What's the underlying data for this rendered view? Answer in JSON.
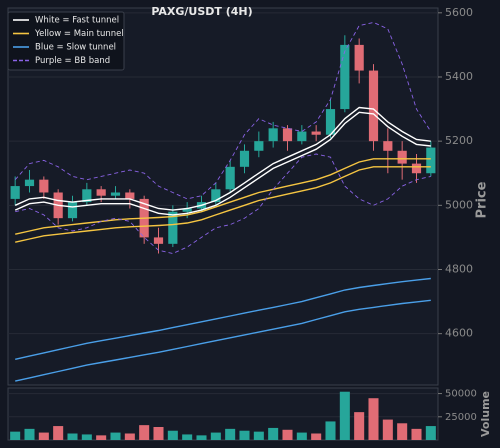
{
  "chart_data": [
    {
      "type": "candlestick",
      "title": "PAXG/USDT (4H)",
      "ylabel": "Price",
      "up_color": "#26a69a",
      "down_color": "#e06c75",
      "ylim": [
        4440,
        5615
      ],
      "yticks": [
        4600,
        4800,
        5000,
        5200,
        5400,
        5600
      ],
      "grid": true,
      "legend": "upper left",
      "open": [
        5020,
        5060,
        5080,
        5040,
        4960,
        5010,
        5050,
        5030,
        5040,
        5020,
        4900,
        4880,
        4980,
        4990,
        5010,
        5050,
        5120,
        5170,
        5200,
        5240,
        5200,
        5230,
        5220,
        5300,
        5500,
        5420,
        5200,
        5170,
        5130,
        5100
      ],
      "high": [
        5090,
        5110,
        5090,
        5050,
        5030,
        5070,
        5060,
        5060,
        5050,
        5030,
        4930,
        5000,
        5010,
        5030,
        5070,
        5140,
        5190,
        5230,
        5260,
        5250,
        5250,
        5250,
        5330,
        5530,
        5520,
        5440,
        5240,
        5200,
        5160,
        5200
      ],
      "low": [
        5000,
        5040,
        5020,
        4940,
        4950,
        5000,
        5010,
        5020,
        4990,
        4880,
        4850,
        4870,
        4960,
        4980,
        5000,
        5040,
        5100,
        5150,
        5180,
        5170,
        5190,
        5200,
        5210,
        5290,
        5380,
        5170,
        5100,
        5080,
        5070,
        5090
      ],
      "close": [
        5060,
        5080,
        5040,
        4960,
        5010,
        5050,
        5030,
        5040,
        5020,
        4900,
        4880,
        4980,
        4990,
        5010,
        5050,
        5120,
        5170,
        5200,
        5240,
        5200,
        5230,
        5220,
        5300,
        5500,
        5420,
        5200,
        5170,
        5130,
        5100,
        5180
      ],
      "indicators": [
        {
          "name": "White = Fast tunnel",
          "color": "#ffffff",
          "dash": false,
          "lines": [
            [
              5000,
              5020,
              5025,
              5015,
              5010,
              5015,
              5020,
              5020,
              5020,
              5005,
              4990,
              4985,
              4990,
              5000,
              5015,
              5040,
              5070,
              5100,
              5130,
              5150,
              5170,
              5190,
              5220,
              5270,
              5305,
              5300,
              5260,
              5230,
              5205,
              5200
            ],
            [
              4985,
              5005,
              5010,
              5000,
              4995,
              5000,
              5005,
              5005,
              5005,
              4990,
              4975,
              4970,
              4975,
              4985,
              5000,
              5025,
              5055,
              5085,
              5115,
              5135,
              5155,
              5175,
              5205,
              5255,
              5290,
              5285,
              5245,
              5215,
              5190,
              5185
            ]
          ]
        },
        {
          "name": "Yellow = Main tunnel",
          "color": "#f5c542",
          "dash": false,
          "lines": [
            [
              4910,
              4920,
              4930,
              4935,
              4940,
              4945,
              4950,
              4955,
              4958,
              4960,
              4962,
              4965,
              4970,
              4980,
              4995,
              5010,
              5025,
              5040,
              5050,
              5060,
              5070,
              5080,
              5095,
              5115,
              5135,
              5145,
              5145,
              5145,
              5145,
              5145
            ],
            [
              4885,
              4895,
              4905,
              4910,
              4915,
              4920,
              4925,
              4930,
              4933,
              4935,
              4937,
              4940,
              4945,
              4955,
              4970,
              4985,
              5000,
              5015,
              5025,
              5035,
              5045,
              5055,
              5070,
              5090,
              5110,
              5120,
              5120,
              5120,
              5120,
              5120
            ]
          ]
        },
        {
          "name": "Blue = Slow tunnel",
          "color": "#4a9fe8",
          "dash": false,
          "lines": [
            [
              4520,
              4530,
              4540,
              4550,
              4560,
              4570,
              4578,
              4586,
              4594,
              4602,
              4610,
              4619,
              4628,
              4637,
              4646,
              4655,
              4664,
              4673,
              4682,
              4691,
              4700,
              4712,
              4724,
              4736,
              4744,
              4750,
              4756,
              4762,
              4767,
              4772
            ],
            [
              4452,
              4462,
              4472,
              4482,
              4492,
              4502,
              4510,
              4518,
              4526,
              4534,
              4542,
              4551,
              4560,
              4569,
              4578,
              4587,
              4596,
              4605,
              4614,
              4623,
              4632,
              4644,
              4656,
              4668,
              4676,
              4682,
              4688,
              4694,
              4699,
              4704
            ]
          ]
        },
        {
          "name": "Purple = BB band",
          "color": "#8a63e6",
          "dash": true,
          "lines": [
            [
              5080,
              5130,
              5140,
              5120,
              5090,
              5080,
              5090,
              5100,
              5110,
              5100,
              5060,
              5040,
              5020,
              5030,
              5070,
              5140,
              5220,
              5270,
              5250,
              5240,
              5230,
              5260,
              5330,
              5480,
              5560,
              5570,
              5550,
              5440,
              5300,
              5230
            ],
            [
              4980,
              4990,
              4970,
              4930,
              4920,
              4930,
              4950,
              4960,
              4950,
              4900,
              4860,
              4850,
              4870,
              4900,
              4930,
              4940,
              4960,
              4990,
              5050,
              5100,
              5150,
              5160,
              5150,
              5060,
              5020,
              5000,
              5020,
              5060,
              5080,
              5090
            ]
          ]
        }
      ]
    },
    {
      "type": "bar",
      "ylabel": "Volume",
      "ylim": [
        0,
        56000
      ],
      "yticks": [
        25000,
        50000
      ],
      "values": [
        9000,
        12000,
        8000,
        15000,
        7000,
        6000,
        5000,
        8000,
        7000,
        16000,
        14000,
        10000,
        6000,
        5000,
        8000,
        12000,
        10000,
        9000,
        13000,
        11000,
        8000,
        7000,
        20000,
        52000,
        30000,
        45000,
        22000,
        18000,
        12000,
        15000
      ]
    }
  ]
}
